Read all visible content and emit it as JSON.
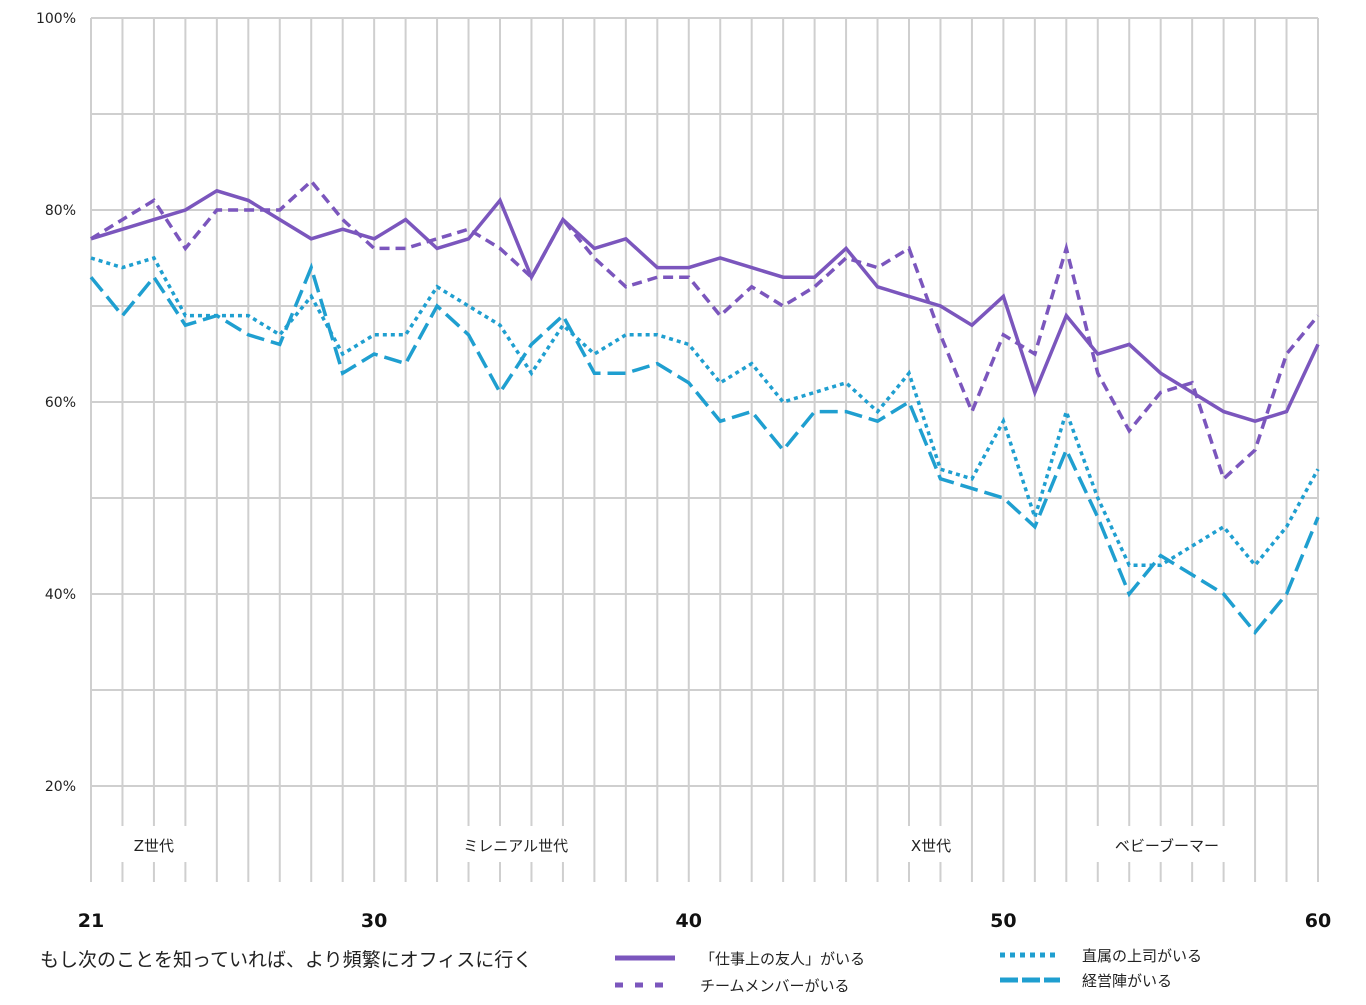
{
  "chart_data": {
    "type": "line",
    "title": "",
    "caption": "もし次のことを知っていれば、より頻繁にオフィスに行く",
    "xlabel": "",
    "ylabel": "",
    "xlim": [
      21,
      60
    ],
    "ylim": [
      10,
      100
    ],
    "x_ticks": [
      21,
      30,
      40,
      50,
      60
    ],
    "y_ticks": [
      "20%",
      "40%",
      "60%",
      "80%",
      "100%"
    ],
    "y_tick_values": [
      20,
      40,
      60,
      80,
      100
    ],
    "grid": true,
    "legend_position": "bottom",
    "x": [
      21,
      22,
      23,
      24,
      25,
      26,
      27,
      28,
      29,
      30,
      31,
      32,
      33,
      34,
      35,
      36,
      37,
      38,
      39,
      40,
      41,
      42,
      43,
      44,
      45,
      46,
      47,
      48,
      49,
      50,
      51,
      52,
      53,
      54,
      55,
      56,
      57,
      58,
      59,
      60
    ],
    "series": [
      {
        "name": "「仕事上の友人」がいる",
        "color": "#7b56bd",
        "style": "solid",
        "values": [
          77,
          78,
          79,
          80,
          82,
          81,
          79,
          77,
          78,
          77,
          79,
          76,
          77,
          81,
          73,
          79,
          76,
          77,
          74,
          74,
          75,
          74,
          73,
          73,
          76,
          72,
          71,
          70,
          68,
          71,
          61,
          69,
          65,
          66,
          63,
          61,
          59,
          58,
          59,
          66
        ]
      },
      {
        "name": "チームメンバーがいる",
        "color": "#7b56bd",
        "style": "dashed",
        "values": [
          77,
          79,
          81,
          76,
          80,
          80,
          80,
          83,
          79,
          76,
          76,
          77,
          78,
          76,
          73,
          79,
          75,
          72,
          73,
          73,
          69,
          72,
          70,
          72,
          75,
          74,
          76,
          67,
          59,
          67,
          65,
          76,
          63,
          57,
          61,
          62,
          52,
          55,
          65,
          69
        ]
      },
      {
        "name": "直属の上司がいる",
        "color": "#1f9fd0",
        "style": "dotted",
        "values": [
          75,
          74,
          75,
          69,
          69,
          69,
          67,
          71,
          65,
          67,
          67,
          72,
          70,
          68,
          63,
          68,
          65,
          67,
          67,
          66,
          62,
          64,
          60,
          61,
          62,
          59,
          63,
          53,
          52,
          58,
          48,
          59,
          50,
          43,
          43,
          45,
          47,
          43,
          47,
          53
        ]
      },
      {
        "name": "経営陣がいる",
        "color": "#1f9fd0",
        "style": "longdash",
        "values": [
          73,
          69,
          73,
          68,
          69,
          67,
          66,
          74,
          63,
          65,
          64,
          70,
          67,
          61,
          66,
          69,
          63,
          63,
          64,
          62,
          58,
          59,
          55,
          59,
          59,
          58,
          60,
          52,
          51,
          50,
          47,
          55,
          48,
          40,
          44,
          42,
          40,
          36,
          40,
          48
        ]
      }
    ],
    "annotations": [
      {
        "text": "Z世代",
        "x": 23
      },
      {
        "text": "ミレニアル世代",
        "x": 34.5
      },
      {
        "text": "X世代",
        "x": 47.7
      },
      {
        "text": "ベビーブーマー",
        "x": 55.2
      }
    ]
  }
}
